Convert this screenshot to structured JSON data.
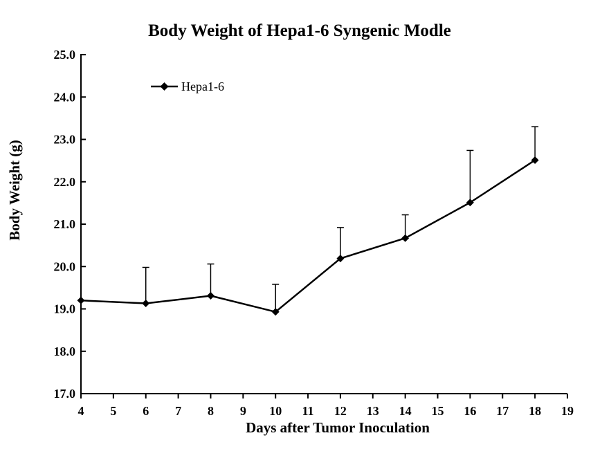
{
  "chart_data": {
    "type": "line",
    "title": "Body Weight of  Hepa1-6 Syngenic Modle",
    "xlabel": "Days after Tumor Inoculation",
    "ylabel": "Body Weight (g)",
    "xlim": [
      4,
      19
    ],
    "ylim": [
      17.0,
      25.0
    ],
    "x_ticks": [
      "4",
      "5",
      "6",
      "7",
      "8",
      "9",
      "10",
      "11",
      "12",
      "13",
      "14",
      "15",
      "16",
      "17",
      "18",
      "19"
    ],
    "y_ticks": [
      "17.0",
      "18.0",
      "19.0",
      "20.0",
      "21.0",
      "22.0",
      "23.0",
      "24.0",
      "25.0"
    ],
    "legend_position": "top-left",
    "grid": false,
    "series": [
      {
        "name": "Hepa1-6",
        "color": "#000000",
        "marker": "diamond",
        "x": [
          4,
          6,
          8,
          10,
          12,
          14,
          16,
          18
        ],
        "y": [
          19.2,
          19.13,
          19.31,
          18.93,
          20.19,
          20.67,
          21.51,
          22.51
        ],
        "error_upper": [
          0.0,
          0.85,
          0.75,
          0.65,
          0.73,
          0.55,
          1.23,
          0.79
        ]
      }
    ]
  }
}
